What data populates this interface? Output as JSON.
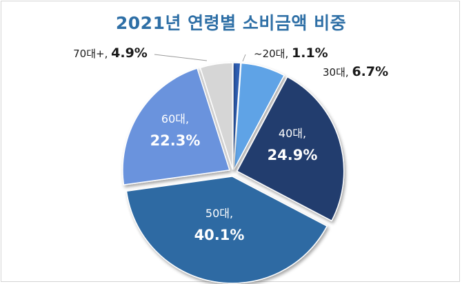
{
  "chart_data": {
    "type": "pie",
    "title": "2021년 연령별 소비금액 비중",
    "categories": [
      "~20대",
      "30대",
      "40대",
      "50대",
      "60대",
      "70대+"
    ],
    "values": [
      1.1,
      6.7,
      24.9,
      40.1,
      22.3,
      4.9
    ],
    "labels": [
      "~20대, ",
      "30대, ",
      "40대,",
      "50대,",
      "60대,",
      "70대+, "
    ],
    "value_labels": [
      "1.1%",
      "6.7%",
      "24.9%",
      "40.1%",
      "22.3%",
      "4.9%"
    ],
    "colors": [
      "#2f5fb5",
      "#5fa3e6",
      "#203e6e",
      "#2f6aa3",
      "#6a93dd",
      "#d6d6d6"
    ],
    "start_angle_deg": 0,
    "direction": "clockwise"
  }
}
